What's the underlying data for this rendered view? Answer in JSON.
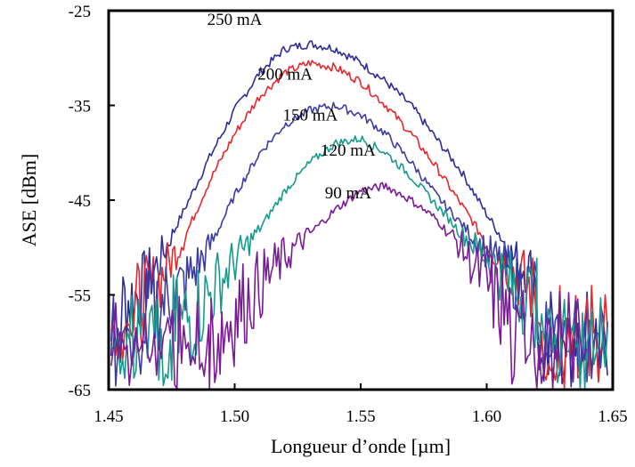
{
  "chart_data": {
    "type": "line",
    "title": "",
    "xlabel": "Longueur d’onde [µm]",
    "ylabel": "ASE [dBm]",
    "xlim": [
      1.45,
      1.65
    ],
    "ylim": [
      -65,
      -25
    ],
    "x_ticks": [
      "1.45",
      "1.50",
      "1.55",
      "1.60",
      "1.65"
    ],
    "y_ticks": [
      "-25",
      "-35",
      "-45",
      "-55",
      "-65"
    ],
    "grid": false,
    "legend": "none",
    "series": [
      {
        "name": "250 mA",
        "color": "#2b2b9a",
        "x": [
          1.455,
          1.462,
          1.47,
          1.48,
          1.49,
          1.5,
          1.51,
          1.52,
          1.53,
          1.54,
          1.55,
          1.56,
          1.57,
          1.58,
          1.59,
          1.6,
          1.605,
          1.61,
          1.615,
          1.62
        ],
        "y": [
          -56,
          -55,
          -51.5,
          -46,
          -40.5,
          -35.5,
          -31.5,
          -29,
          -28.5,
          -29,
          -30.5,
          -32.5,
          -35,
          -38.5,
          -42,
          -46.5,
          -48.5,
          -51,
          -52,
          -53
        ]
      },
      {
        "name": "200 mA",
        "color": "#e8262b",
        "x": [
          1.46,
          1.465,
          1.47,
          1.48,
          1.49,
          1.5,
          1.51,
          1.52,
          1.53,
          1.54,
          1.55,
          1.56,
          1.57,
          1.58,
          1.59,
          1.6,
          1.605,
          1.61,
          1.62
        ],
        "y": [
          -57,
          -55.5,
          -53.5,
          -49,
          -43,
          -38,
          -34,
          -31.5,
          -30.5,
          -31,
          -32.5,
          -35,
          -38,
          -41.5,
          -45.5,
          -49.5,
          -51,
          -52.5,
          -55
        ]
      },
      {
        "name": "150 mA",
        "color": "#3b3ba6",
        "x": [
          1.465,
          1.47,
          1.48,
          1.49,
          1.5,
          1.51,
          1.52,
          1.53,
          1.54,
          1.55,
          1.56,
          1.57,
          1.58,
          1.59,
          1.6,
          1.61,
          1.62
        ],
        "y": [
          -57,
          -56,
          -54,
          -50,
          -44.5,
          -40,
          -37,
          -35.5,
          -35,
          -36,
          -38,
          -41,
          -44.5,
          -47.5,
          -50.5,
          -53,
          -55
        ]
      },
      {
        "name": "120 mA",
        "color": "#169a8e",
        "x": [
          1.475,
          1.48,
          1.49,
          1.5,
          1.51,
          1.52,
          1.53,
          1.54,
          1.55,
          1.56,
          1.57,
          1.58,
          1.59,
          1.6,
          1.61,
          1.62
        ],
        "y": [
          -60,
          -58,
          -55,
          -51.5,
          -48,
          -44,
          -41,
          -39,
          -38.5,
          -40,
          -42.5,
          -45.5,
          -48.5,
          -51,
          -54,
          -56
        ]
      },
      {
        "name": "90 mA",
        "color": "#7a1a96",
        "x": [
          1.49,
          1.5,
          1.51,
          1.52,
          1.53,
          1.54,
          1.55,
          1.56,
          1.57,
          1.58,
          1.59,
          1.6,
          1.61
        ],
        "y": [
          -60,
          -57,
          -54,
          -51,
          -48.5,
          -46,
          -44,
          -43.5,
          -45,
          -47,
          -50,
          -54,
          -58
        ]
      }
    ]
  }
}
